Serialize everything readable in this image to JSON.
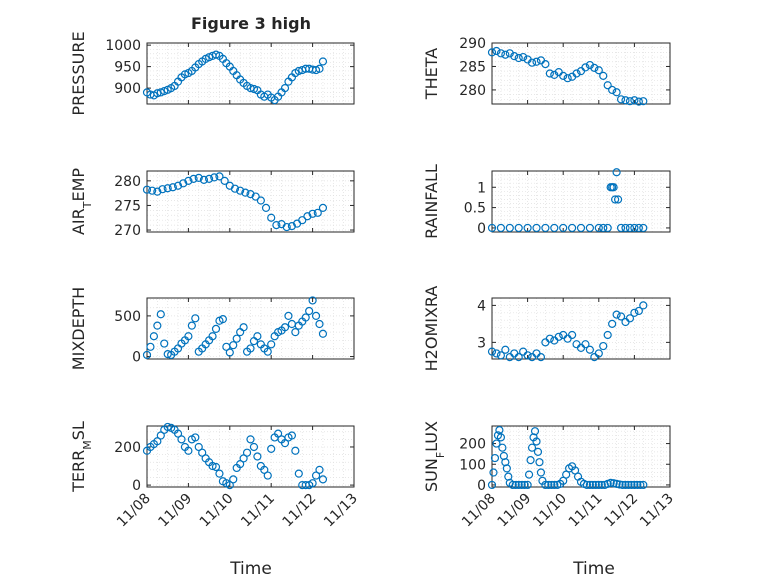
{
  "figure": {
    "title": "Figure 3 high",
    "xlabel": "Time"
  },
  "colors": {
    "marker": "#0072BD",
    "axis": "#262626",
    "grid": "#DFDFDF"
  },
  "chart_data": [
    {
      "type": "scatter",
      "ylabel": "PRESSURE",
      "ylim": [
        863,
        1005
      ],
      "yticks": [
        900,
        950,
        1000
      ],
      "grid": "on (major + minor)",
      "xlim": [
        "11/08",
        "11/13"
      ],
      "x": [
        "11/08 00:00",
        "11/08 02:00",
        "11/08 04:00",
        "11/08 06:00",
        "11/08 08:00",
        "11/08 10:00",
        "11/08 12:00",
        "11/08 14:00",
        "11/08 16:00",
        "11/08 18:00",
        "11/08 20:00",
        "11/08 22:00",
        "11/09 00:00",
        "11/09 02:00",
        "11/09 04:00",
        "11/09 06:00",
        "11/09 08:00",
        "11/09 10:00",
        "11/09 12:00",
        "11/09 14:00",
        "11/09 16:00",
        "11/09 18:00",
        "11/09 20:00",
        "11/09 22:00",
        "11/10 00:00",
        "11/10 02:00",
        "11/10 04:00",
        "11/10 06:00",
        "11/10 08:00",
        "11/10 10:00",
        "11/10 12:00",
        "11/10 14:00",
        "11/10 16:00",
        "11/10 18:00",
        "11/10 20:00",
        "11/10 22:00",
        "11/11 00:00",
        "11/11 02:00",
        "11/11 04:00",
        "11/11 06:00",
        "11/11 08:00",
        "11/11 10:00",
        "11/11 12:00",
        "11/11 14:00",
        "11/11 16:00",
        "11/11 18:00",
        "11/11 20:00",
        "11/11 22:00",
        "11/12 00:00",
        "11/12 02:00",
        "11/12 04:00",
        "11/12 06:00"
      ],
      "values": [
        890,
        885,
        883,
        888,
        890,
        893,
        896,
        900,
        905,
        915,
        925,
        932,
        935,
        940,
        948,
        956,
        962,
        968,
        972,
        975,
        978,
        975,
        968,
        958,
        950,
        940,
        930,
        920,
        912,
        905,
        900,
        898,
        895,
        885,
        880,
        885,
        878,
        872,
        880,
        890,
        900,
        915,
        925,
        935,
        940,
        942,
        945,
        945,
        943,
        942,
        945,
        962
      ]
    },
    {
      "type": "scatter",
      "ylabel": "THETA",
      "ylim": [
        277,
        290
      ],
      "yticks": [
        280,
        285,
        290
      ],
      "grid": "on (major + minor)",
      "xlim": [
        "11/08",
        "11/13"
      ],
      "x": [
        "11/08 00:00",
        "11/08 03:00",
        "11/08 06:00",
        "11/08 09:00",
        "11/08 12:00",
        "11/08 15:00",
        "11/08 18:00",
        "11/08 21:00",
        "11/09 00:00",
        "11/09 03:00",
        "11/09 06:00",
        "11/09 09:00",
        "11/09 12:00",
        "11/09 15:00",
        "11/09 18:00",
        "11/09 21:00",
        "11/10 00:00",
        "11/10 03:00",
        "11/10 06:00",
        "11/10 09:00",
        "11/10 12:00",
        "11/10 15:00",
        "11/10 18:00",
        "11/10 21:00",
        "11/11 00:00",
        "11/11 03:00",
        "11/11 06:00",
        "11/11 09:00",
        "11/11 12:00",
        "11/11 15:00",
        "11/11 18:00",
        "11/11 21:00",
        "11/12 00:00",
        "11/12 03:00",
        "11/12 06:00"
      ],
      "values": [
        288.0,
        288.3,
        287.8,
        287.5,
        287.8,
        287.2,
        286.8,
        287.0,
        286.5,
        285.8,
        286.0,
        286.3,
        285.5,
        283.5,
        283.2,
        283.8,
        283.0,
        282.5,
        282.8,
        283.5,
        284.0,
        284.8,
        285.3,
        284.7,
        284.2,
        283.0,
        281.0,
        280.0,
        279.5,
        278.0,
        277.8,
        277.6,
        277.8,
        277.5,
        277.6
      ]
    },
    {
      "type": "scatter",
      "ylabel": "AIR_TEMP",
      "ylim": [
        269.6,
        282
      ],
      "yticks": [
        270,
        275,
        280
      ],
      "grid": "on (major + minor)",
      "xlim": [
        "11/08",
        "11/13"
      ],
      "x": [
        "11/08 00:00",
        "11/08 03:00",
        "11/08 06:00",
        "11/08 09:00",
        "11/08 12:00",
        "11/08 15:00",
        "11/08 18:00",
        "11/08 21:00",
        "11/09 00:00",
        "11/09 03:00",
        "11/09 06:00",
        "11/09 09:00",
        "11/09 12:00",
        "11/09 15:00",
        "11/09 18:00",
        "11/09 21:00",
        "11/10 00:00",
        "11/10 03:00",
        "11/10 06:00",
        "11/10 09:00",
        "11/10 12:00",
        "11/10 15:00",
        "11/10 18:00",
        "11/10 21:00",
        "11/11 00:00",
        "11/11 03:00",
        "11/11 06:00",
        "11/11 09:00",
        "11/11 12:00",
        "11/11 15:00",
        "11/11 18:00",
        "11/11 21:00",
        "11/12 00:00",
        "11/12 03:00",
        "11/12 06:00"
      ],
      "values": [
        278.2,
        278.0,
        277.8,
        278.3,
        278.5,
        278.7,
        279.0,
        279.5,
        280.0,
        280.4,
        280.6,
        280.2,
        280.4,
        280.7,
        280.9,
        280.0,
        279.0,
        278.4,
        278.0,
        277.6,
        277.3,
        276.8,
        276.0,
        274.5,
        272.5,
        271.0,
        271.2,
        270.6,
        270.8,
        271.3,
        272.0,
        272.8,
        273.3,
        273.5,
        274.5
      ]
    },
    {
      "type": "scatter",
      "ylabel": "RAINFALL",
      "ylim": [
        -0.1,
        1.4
      ],
      "yticks": [
        0,
        0.5,
        1
      ],
      "grid": "on (major + minor)",
      "xlim": [
        "11/08",
        "11/13"
      ],
      "x": [
        "11/08 00:00",
        "11/08 06:00",
        "11/08 12:00",
        "11/08 18:00",
        "11/09 00:00",
        "11/09 06:00",
        "11/09 12:00",
        "11/09 18:00",
        "11/10 00:00",
        "11/10 06:00",
        "11/10 12:00",
        "11/10 18:00",
        "11/11 00:00",
        "11/11 03:00",
        "11/11 06:00",
        "11/11 08:00",
        "11/11 09:00",
        "11/11 10:00",
        "11/11 11:00",
        "11/11 12:00",
        "11/11 13:00",
        "11/11 15:00",
        "11/11 18:00",
        "11/11 21:00",
        "11/12 00:00",
        "11/12 03:00",
        "11/12 06:00"
      ],
      "values": [
        0,
        0,
        0,
        0,
        0,
        0,
        0,
        0,
        0,
        0,
        0,
        0,
        0,
        0,
        0,
        1.0,
        1.0,
        1.0,
        0.7,
        1.37,
        0.7,
        0,
        0,
        0,
        0,
        0,
        0
      ]
    },
    {
      "type": "scatter",
      "ylabel": "MIXDEPTH",
      "ylim": [
        -30,
        720
      ],
      "yticks": [
        0,
        500
      ],
      "grid": "on (major + minor)",
      "xlim": [
        "11/08",
        "11/13"
      ],
      "x": [
        "11/08 00:00",
        "11/08 02:00",
        "11/08 04:00",
        "11/08 06:00",
        "11/08 08:00",
        "11/08 10:00",
        "11/08 12:00",
        "11/08 14:00",
        "11/08 16:00",
        "11/08 18:00",
        "11/08 20:00",
        "11/08 22:00",
        "11/09 00:00",
        "11/09 02:00",
        "11/09 04:00",
        "11/09 06:00",
        "11/09 08:00",
        "11/09 10:00",
        "11/09 12:00",
        "11/09 14:00",
        "11/09 16:00",
        "11/09 18:00",
        "11/09 20:00",
        "11/09 22:00",
        "11/10 00:00",
        "11/10 02:00",
        "11/10 04:00",
        "11/10 06:00",
        "11/10 08:00",
        "11/10 10:00",
        "11/10 12:00",
        "11/10 14:00",
        "11/10 16:00",
        "11/10 18:00",
        "11/10 20:00",
        "11/10 22:00",
        "11/11 00:00",
        "11/11 02:00",
        "11/11 04:00",
        "11/11 06:00",
        "11/11 08:00",
        "11/11 10:00",
        "11/11 12:00",
        "11/11 14:00",
        "11/11 16:00",
        "11/11 18:00",
        "11/11 20:00",
        "11/11 22:00",
        "11/12 00:00",
        "11/12 02:00",
        "11/12 04:00",
        "11/12 06:00"
      ],
      "values": [
        20,
        120,
        250,
        380,
        520,
        160,
        30,
        20,
        60,
        100,
        160,
        200,
        250,
        380,
        470,
        60,
        100,
        150,
        200,
        250,
        340,
        440,
        460,
        120,
        50,
        140,
        220,
        300,
        360,
        60,
        100,
        190,
        250,
        150,
        100,
        60,
        150,
        250,
        300,
        320,
        360,
        500,
        400,
        300,
        380,
        430,
        480,
        560,
        690,
        500,
        400,
        280
      ]
    },
    {
      "type": "scatter",
      "ylabel": "H2OMIXRA",
      "ylim": [
        2.55,
        4.2
      ],
      "yticks": [
        3,
        4
      ],
      "grid": "on (major + minor)",
      "xlim": [
        "11/08",
        "11/13"
      ],
      "x": [
        "11/08 00:00",
        "11/08 03:00",
        "11/08 06:00",
        "11/08 09:00",
        "11/08 12:00",
        "11/08 15:00",
        "11/08 18:00",
        "11/08 21:00",
        "11/09 00:00",
        "11/09 03:00",
        "11/09 06:00",
        "11/09 09:00",
        "11/09 12:00",
        "11/09 15:00",
        "11/09 18:00",
        "11/09 21:00",
        "11/10 00:00",
        "11/10 03:00",
        "11/10 06:00",
        "11/10 09:00",
        "11/10 12:00",
        "11/10 15:00",
        "11/10 18:00",
        "11/10 21:00",
        "11/11 00:00",
        "11/11 03:00",
        "11/11 06:00",
        "11/11 09:00",
        "11/11 12:00",
        "11/11 15:00",
        "11/11 18:00",
        "11/11 21:00",
        "11/12 00:00",
        "11/12 03:00",
        "11/12 06:00"
      ],
      "values": [
        2.75,
        2.7,
        2.65,
        2.8,
        2.6,
        2.7,
        2.6,
        2.75,
        2.65,
        2.6,
        2.7,
        2.6,
        3.0,
        3.1,
        3.05,
        3.15,
        3.2,
        3.1,
        3.2,
        2.95,
        2.85,
        2.95,
        2.8,
        2.6,
        2.7,
        2.9,
        3.2,
        3.5,
        3.75,
        3.7,
        3.55,
        3.65,
        3.8,
        3.85,
        4.0
      ]
    },
    {
      "type": "scatter",
      "ylabel": "TERR_MSL",
      "ylim": [
        -10,
        310
      ],
      "yticks": [
        0,
        200
      ],
      "grid": "on (major + minor)",
      "xlim": [
        "11/08",
        "11/13"
      ],
      "xticks": [
        "11/08",
        "11/09",
        "11/10",
        "11/11",
        "11/12",
        "11/13"
      ],
      "x": [
        "11/08 00:00",
        "11/08 02:00",
        "11/08 04:00",
        "11/08 06:00",
        "11/08 08:00",
        "11/08 10:00",
        "11/08 12:00",
        "11/08 14:00",
        "11/08 16:00",
        "11/08 18:00",
        "11/08 20:00",
        "11/08 22:00",
        "11/09 00:00",
        "11/09 02:00",
        "11/09 04:00",
        "11/09 06:00",
        "11/09 08:00",
        "11/09 10:00",
        "11/09 12:00",
        "11/09 14:00",
        "11/09 16:00",
        "11/09 18:00",
        "11/09 20:00",
        "11/09 22:00",
        "11/10 00:00",
        "11/10 02:00",
        "11/10 04:00",
        "11/10 06:00",
        "11/10 08:00",
        "11/10 10:00",
        "11/10 12:00",
        "11/10 14:00",
        "11/10 16:00",
        "11/10 18:00",
        "11/10 20:00",
        "11/10 22:00",
        "11/11 00:00",
        "11/11 02:00",
        "11/11 04:00",
        "11/11 06:00",
        "11/11 08:00",
        "11/11 10:00",
        "11/11 12:00",
        "11/11 14:00",
        "11/11 16:00",
        "11/11 18:00",
        "11/11 20:00",
        "11/11 22:00",
        "11/12 00:00",
        "11/12 02:00",
        "11/12 04:00",
        "11/12 06:00"
      ],
      "values": [
        180,
        200,
        215,
        230,
        260,
        290,
        305,
        300,
        290,
        270,
        240,
        200,
        180,
        240,
        250,
        200,
        170,
        140,
        120,
        100,
        95,
        60,
        20,
        10,
        0,
        30,
        90,
        110,
        140,
        170,
        240,
        200,
        150,
        100,
        80,
        50,
        190,
        250,
        270,
        240,
        220,
        250,
        260,
        180,
        60,
        0,
        0,
        0,
        10,
        50,
        80,
        30
      ]
    },
    {
      "type": "scatter",
      "ylabel": "SUN_FLUX",
      "ylim": [
        -10,
        285
      ],
      "yticks": [
        0,
        100,
        200
      ],
      "grid": "on (major + minor)",
      "xlim": [
        "11/08",
        "11/13"
      ],
      "xticks": [
        "11/08",
        "11/09",
        "11/10",
        "11/11",
        "11/12",
        "11/13"
      ],
      "x": [
        "11/08 00:00",
        "11/08 01:00",
        "11/08 02:00",
        "11/08 03:00",
        "11/08 04:00",
        "11/08 05:00",
        "11/08 06:00",
        "11/08 07:00",
        "11/08 08:00",
        "11/08 09:00",
        "11/08 10:00",
        "11/08 11:00",
        "11/08 12:00",
        "11/08 14:00",
        "11/08 16:00",
        "11/08 18:00",
        "11/08 20:00",
        "11/08 22:00",
        "11/09 00:00",
        "11/09 01:00",
        "11/09 02:00",
        "11/09 03:00",
        "11/09 04:00",
        "11/09 05:00",
        "11/09 06:00",
        "11/09 07:00",
        "11/09 08:00",
        "11/09 09:00",
        "11/09 10:00",
        "11/09 12:00",
        "11/09 14:00",
        "11/09 16:00",
        "11/09 18:00",
        "11/09 20:00",
        "11/09 22:00",
        "11/10 00:00",
        "11/10 02:00",
        "11/10 04:00",
        "11/10 06:00",
        "11/10 08:00",
        "11/10 10:00",
        "11/10 12:00",
        "11/10 14:00",
        "11/10 16:00",
        "11/10 18:00",
        "11/10 20:00",
        "11/10 22:00",
        "11/11 00:00",
        "11/11 02:00",
        "11/11 04:00",
        "11/11 06:00",
        "11/11 08:00",
        "11/11 10:00",
        "11/11 12:00",
        "11/11 14:00",
        "11/11 16:00",
        "11/11 18:00",
        "11/11 20:00",
        "11/11 22:00",
        "11/12 00:00",
        "11/12 02:00",
        "11/12 04:00",
        "11/12 06:00"
      ],
      "values": [
        0,
        60,
        130,
        200,
        240,
        265,
        230,
        180,
        140,
        110,
        80,
        40,
        10,
        0,
        0,
        0,
        0,
        0,
        0,
        50,
        120,
        180,
        230,
        260,
        210,
        160,
        110,
        60,
        20,
        0,
        0,
        0,
        0,
        0,
        5,
        20,
        50,
        80,
        90,
        70,
        40,
        15,
        5,
        0,
        0,
        0,
        0,
        0,
        0,
        0,
        5,
        10,
        8,
        5,
        2,
        0,
        0,
        0,
        0,
        0,
        0,
        0,
        0
      ]
    }
  ]
}
